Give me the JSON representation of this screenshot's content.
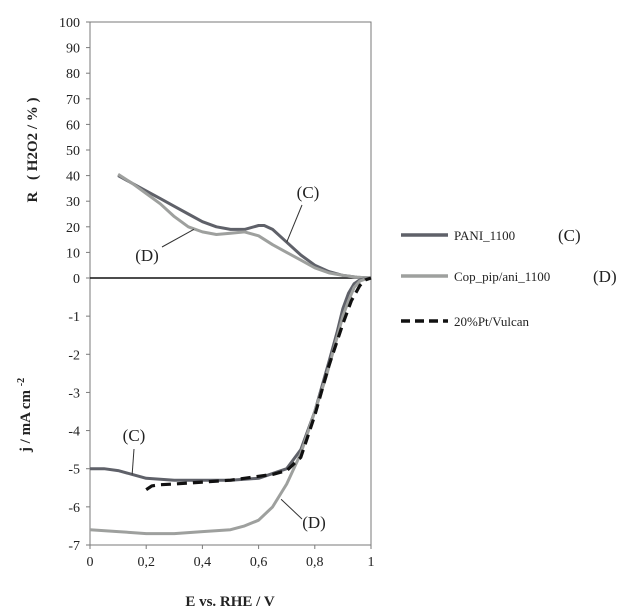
{
  "chart_data": [
    {
      "type": "line",
      "panel": "top",
      "ylabel_main": "R",
      "ylabel_paren": "( H2O2 / % )",
      "ylim": [
        0,
        100
      ],
      "yticks": [
        "0",
        "10",
        "20",
        "30",
        "40",
        "50",
        "60",
        "70",
        "80",
        "90",
        "100"
      ],
      "xlim": [
        0,
        1
      ],
      "grid": false,
      "series": [
        {
          "name": "PANI_1100",
          "color": "#5f6169",
          "tag": "(C)",
          "x": [
            0.1,
            0.15,
            0.2,
            0.25,
            0.3,
            0.35,
            0.4,
            0.45,
            0.5,
            0.55,
            0.6,
            0.62,
            0.65,
            0.7,
            0.75,
            0.8,
            0.85,
            0.9,
            0.95,
            1.0
          ],
          "y": [
            40,
            37,
            34,
            31,
            28,
            25,
            22,
            20,
            19,
            19,
            20.5,
            20.5,
            19,
            14,
            9,
            5,
            2.5,
            1,
            0.3,
            0
          ]
        },
        {
          "name": "Cop_pip/ani_1100",
          "color": "#9ea09e",
          "tag": "(D)",
          "x": [
            0.1,
            0.15,
            0.2,
            0.25,
            0.3,
            0.35,
            0.4,
            0.45,
            0.5,
            0.55,
            0.6,
            0.65,
            0.7,
            0.75,
            0.8,
            0.85,
            0.9,
            0.95,
            1.0
          ],
          "y": [
            40.5,
            37,
            33,
            29,
            24,
            20,
            18,
            17,
            17.5,
            18,
            16.5,
            13,
            10,
            7,
            4,
            2,
            1,
            0.3,
            0
          ]
        }
      ]
    },
    {
      "type": "line",
      "panel": "bottom",
      "ylabel_main": "j / mA cm",
      "ylabel_sup": "-2",
      "xlabel": "E vs. RHE / V",
      "ylim": [
        -7,
        0
      ],
      "yticks": [
        "-1",
        "-2",
        "-3",
        "-4",
        "-5",
        "-6",
        "-7"
      ],
      "xlim": [
        0,
        1
      ],
      "xticks": [
        "0",
        "0,2",
        "0,4",
        "0,6",
        "0,8",
        "1"
      ],
      "grid": false,
      "series": [
        {
          "name": "PANI_1100",
          "color": "#5f6169",
          "tag": "(C)",
          "x": [
            0,
            0.05,
            0.1,
            0.15,
            0.2,
            0.3,
            0.4,
            0.5,
            0.6,
            0.7,
            0.75,
            0.8,
            0.85,
            0.88,
            0.9,
            0.92,
            0.94,
            0.96,
            0.98,
            1.0
          ],
          "y": [
            -5.0,
            -5.0,
            -5.05,
            -5.15,
            -5.25,
            -5.3,
            -5.3,
            -5.3,
            -5.25,
            -5.0,
            -4.5,
            -3.5,
            -2.2,
            -1.4,
            -0.8,
            -0.4,
            -0.15,
            -0.05,
            -0.02,
            0
          ]
        },
        {
          "name": "Cop_pip/ani_1100",
          "color": "#9ea09e",
          "tag": "(D)",
          "x": [
            0,
            0.1,
            0.2,
            0.3,
            0.4,
            0.5,
            0.55,
            0.6,
            0.65,
            0.7,
            0.75,
            0.8,
            0.84,
            0.87,
            0.9,
            0.92,
            0.94,
            0.96,
            0.98,
            1.0
          ],
          "y": [
            -6.6,
            -6.65,
            -6.7,
            -6.7,
            -6.65,
            -6.6,
            -6.5,
            -6.35,
            -6.0,
            -5.4,
            -4.6,
            -3.5,
            -2.6,
            -1.8,
            -1.0,
            -0.6,
            -0.25,
            -0.08,
            -0.03,
            0
          ]
        },
        {
          "name": "20%Pt/Vulcan",
          "color": "#111111",
          "dashed": true,
          "x": [
            0.2,
            0.22,
            0.25,
            0.3,
            0.4,
            0.5,
            0.6,
            0.65,
            0.7,
            0.75,
            0.8,
            0.85,
            0.9,
            0.93,
            0.96,
            0.98,
            1.0
          ],
          "y": [
            -5.55,
            -5.45,
            -5.42,
            -5.4,
            -5.35,
            -5.3,
            -5.2,
            -5.15,
            -5.05,
            -4.7,
            -3.6,
            -2.3,
            -1.2,
            -0.6,
            -0.2,
            -0.05,
            0
          ]
        }
      ]
    }
  ],
  "legend": [
    {
      "label": "PANI_1100",
      "tag": "(C)",
      "color": "#5f6169",
      "dashed": false
    },
    {
      "label": "Cop_pip/ani_1100",
      "tag": "(D)",
      "color": "#9ea09e",
      "dashed": false
    },
    {
      "label": "20%Pt/Vulcan",
      "tag": "",
      "color": "#111111",
      "dashed": true
    }
  ],
  "annotations": [
    {
      "text": "(C)",
      "panel": "top",
      "target_x": 0.7,
      "target_y": 14
    },
    {
      "text": "(D)",
      "panel": "top",
      "target_x": 0.37,
      "target_y": 19
    },
    {
      "text": "(C)",
      "panel": "bottom",
      "target_x": 0.15,
      "target_y": -5.15
    },
    {
      "text": "(D)",
      "panel": "bottom",
      "target_x": 0.68,
      "target_y": -5.8
    }
  ]
}
